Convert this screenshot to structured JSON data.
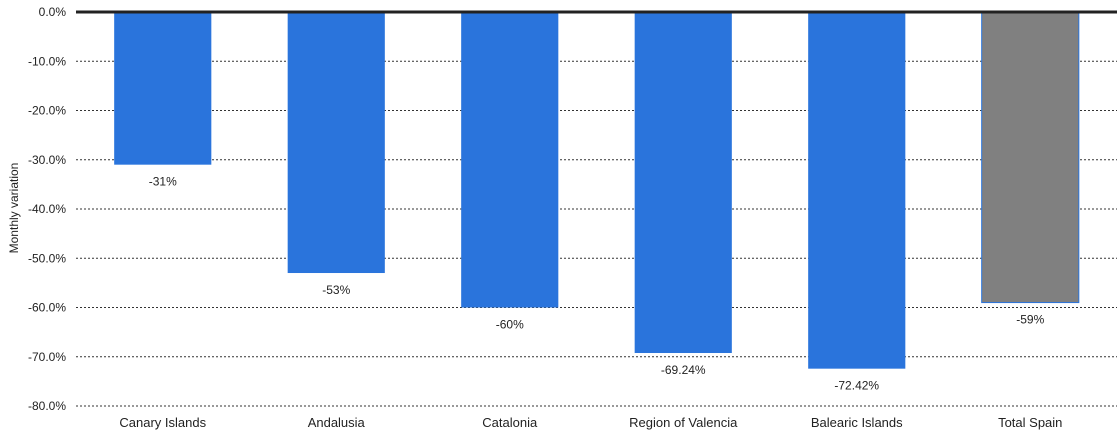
{
  "chart_data": {
    "type": "bar",
    "title": "",
    "xlabel": "",
    "ylabel": "Monthly variation",
    "categories": [
      "Canary Islands",
      "Andalusia",
      "Catalonia",
      "Region of Valencia",
      "Balearic Islands",
      "Total Spain"
    ],
    "values": [
      -31,
      -53,
      -60,
      -69.24,
      -72.42,
      -59
    ],
    "data_labels": [
      "-31%",
      "-53%",
      "-60%",
      "-69.24%",
      "-72.42%",
      "-59%"
    ],
    "y_ticks": [
      0,
      -10,
      -20,
      -30,
      -40,
      -50,
      -60,
      -70,
      -80
    ],
    "y_tick_labels": [
      "0.0%",
      "-10.0%",
      "-20.0%",
      "-30.0%",
      "-40.0%",
      "-50.0%",
      "-60.0%",
      "-70.0%",
      "-80.0%"
    ],
    "ylim": [
      -80,
      0
    ],
    "grid": true,
    "legend": false,
    "colors": {
      "bar": "#2a74dc",
      "total_bar": "#808080",
      "total_bar_border": "#2a74dc",
      "grid": "#333333",
      "zero_line": "#222222"
    }
  }
}
